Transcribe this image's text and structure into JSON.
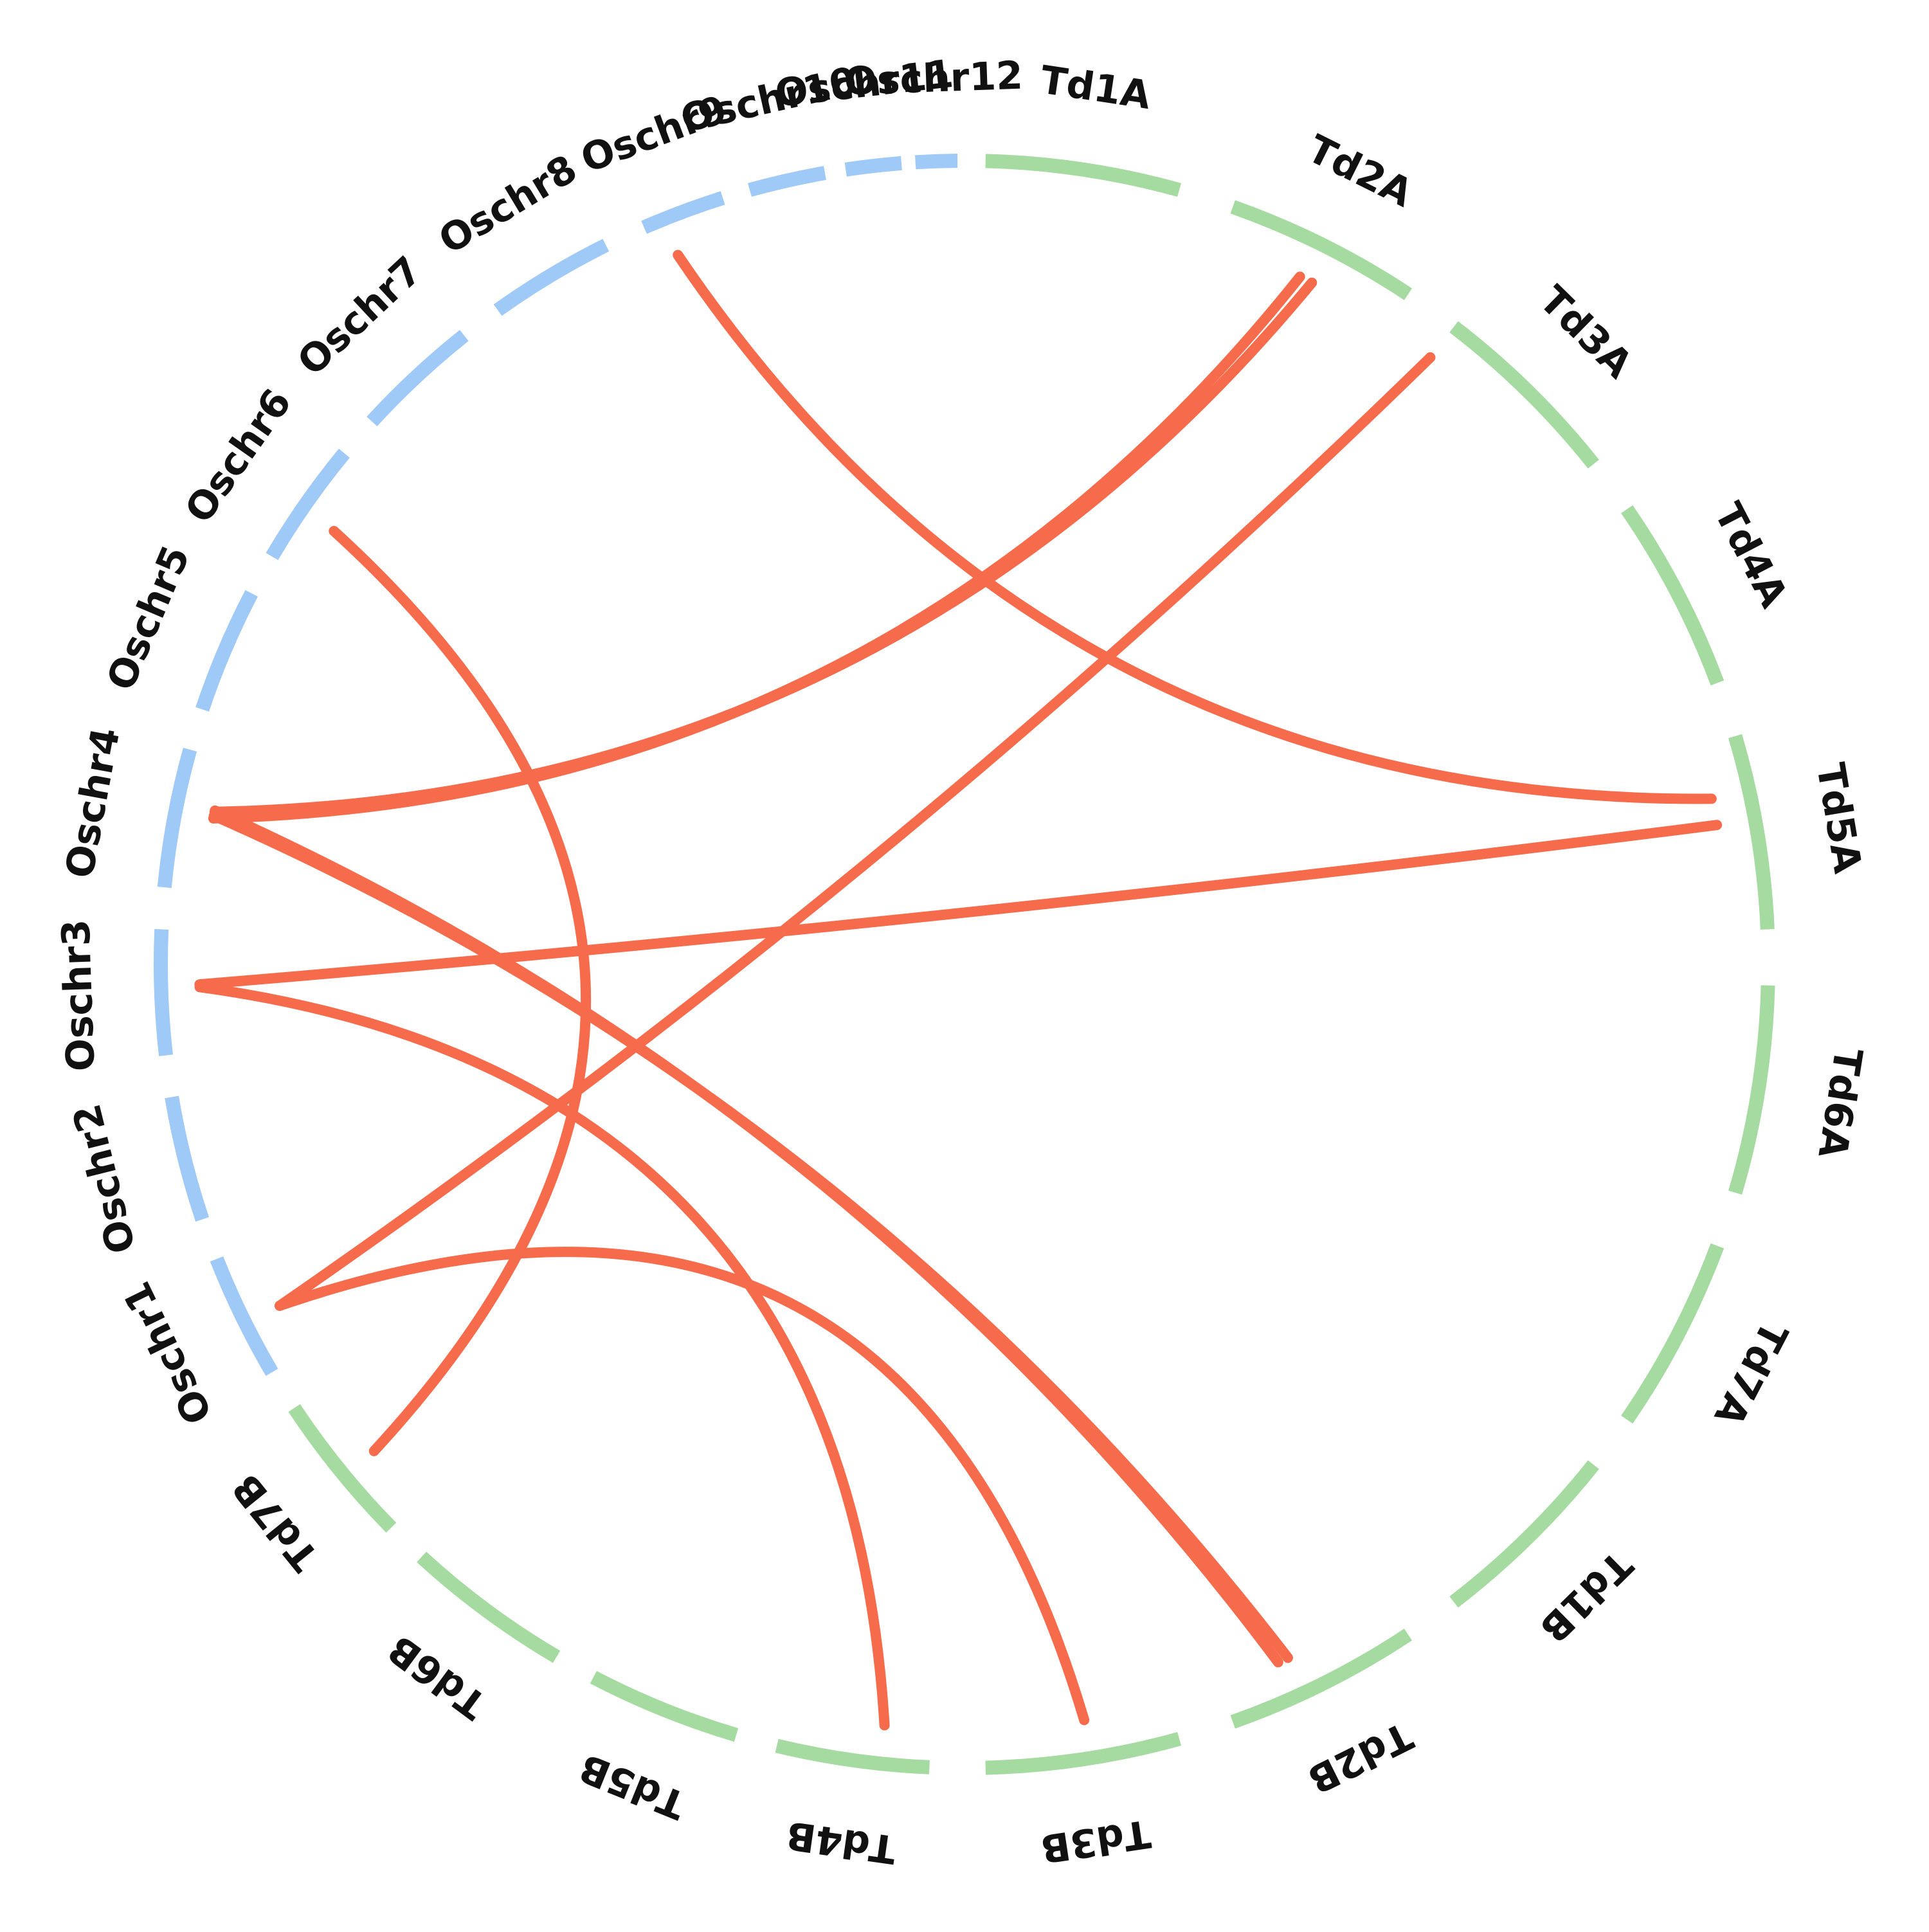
{
  "colors": {
    "rice_segment": "#9fcaf7",
    "wheat_segment": "#a5dba0",
    "link": "#f56b4b",
    "label": "#111111",
    "background": "#ffffff"
  },
  "chromosomes": [
    {
      "id": "Td1A",
      "label": "Td1A",
      "group": "wheat"
    },
    {
      "id": "Td2A",
      "label": "Td2A",
      "group": "wheat"
    },
    {
      "id": "Td3A",
      "label": "Td3A",
      "group": "wheat"
    },
    {
      "id": "Td4A",
      "label": "Td4A",
      "group": "wheat"
    },
    {
      "id": "Td5A",
      "label": "Td5A",
      "group": "wheat"
    },
    {
      "id": "Td6A",
      "label": "Td6A",
      "group": "wheat"
    },
    {
      "id": "Td7A",
      "label": "Td7A",
      "group": "wheat"
    },
    {
      "id": "Td1B",
      "label": "Td1B",
      "group": "wheat"
    },
    {
      "id": "Td2B",
      "label": "Td2B",
      "group": "wheat"
    },
    {
      "id": "Td3B",
      "label": "Td3B",
      "group": "wheat"
    },
    {
      "id": "Td4B",
      "label": "Td4B",
      "group": "wheat"
    },
    {
      "id": "Td5B",
      "label": "Td5B",
      "group": "wheat"
    },
    {
      "id": "Td6B",
      "label": "Td6B",
      "group": "wheat"
    },
    {
      "id": "Td7B",
      "label": "Td7B",
      "group": "wheat"
    },
    {
      "id": "Oschr1",
      "label": "Oschr1",
      "group": "rice"
    },
    {
      "id": "Oschr2",
      "label": "Oschr2",
      "group": "rice"
    },
    {
      "id": "Oschr3",
      "label": "Oschr3",
      "group": "rice"
    },
    {
      "id": "Oschr4",
      "label": "Oschr4",
      "group": "rice"
    },
    {
      "id": "Oschr5",
      "label": "Oschr5",
      "group": "rice"
    },
    {
      "id": "Oschr6",
      "label": "Oschr6",
      "group": "rice"
    },
    {
      "id": "Oschr7",
      "label": "Oschr7",
      "group": "rice"
    },
    {
      "id": "Oschr8",
      "label": "Oschr8",
      "group": "rice"
    },
    {
      "id": "Oschr9",
      "label": "Oschr9",
      "group": "rice"
    },
    {
      "id": "Oschr10",
      "label": "Oschr10",
      "group": "rice"
    },
    {
      "id": "Oschr11",
      "label": "Oschr11",
      "group": "rice"
    },
    {
      "id": "Oschr12",
      "label": "Oschr12",
      "group": "rice"
    }
  ],
  "links": [
    {
      "from": "Oschr9",
      "to": "Td5A"
    },
    {
      "from": "Oschr6",
      "to": "Td7B"
    },
    {
      "from": "Oschr4",
      "to": "Td2A"
    },
    {
      "from": "Oschr4",
      "to": "Td2A"
    },
    {
      "from": "Oschr4",
      "to": "Td2B"
    },
    {
      "from": "Oschr4",
      "to": "Td2B"
    },
    {
      "from": "Oschr3",
      "to": "Td5A"
    },
    {
      "from": "Oschr3",
      "to": "Td4B"
    },
    {
      "from": "Oschr1",
      "to": "Td3A"
    },
    {
      "from": "Oschr1",
      "to": "Td3B"
    }
  ]
}
